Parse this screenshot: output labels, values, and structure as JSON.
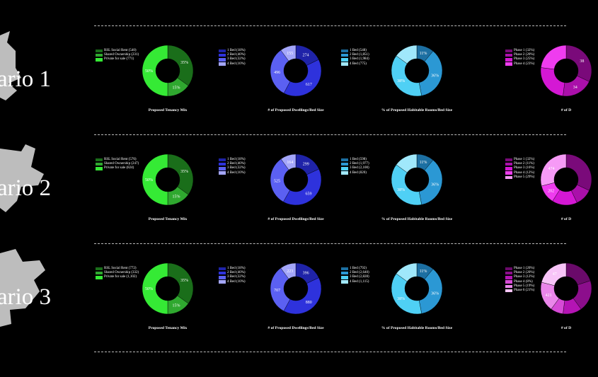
{
  "scenarios": [
    {
      "title": "ario 1",
      "charts": [
        {
          "caption": "Proposed Tenancy Mix",
          "legend": [
            "RSL Social Rent (540)",
            "Shared Ownership (231)",
            "Private for sale (771)"
          ],
          "colors": [
            "#1a6e1a",
            "#2fa82f",
            "#35ea35"
          ],
          "values": [
            35,
            15,
            50
          ],
          "labels": [
            "35%",
            "15%",
            "50%"
          ]
        },
        {
          "caption": "# of Proposed Dwellings/Bed Size",
          "legend": [
            "1 Bed (18%)",
            "2 Bed (40%)",
            "3 Bed (32%)",
            "4 Bed (10%)"
          ],
          "colors": [
            "#1f23a8",
            "#2e32dc",
            "#5b60f2",
            "#a4a6fa"
          ],
          "values": [
            274,
            617,
            496,
            155
          ],
          "labels": [
            "274",
            "617",
            "496",
            "155"
          ]
        },
        {
          "caption": "% of Proposed Habitable Rooms/Bed Size",
          "legend": [
            "1 Bed (548)",
            "2 Bed (1,851)",
            "3 Bed (1,984)",
            "4 Bed (775)"
          ],
          "colors": [
            "#1c6fa2",
            "#2b98d4",
            "#4fd0f5",
            "#a0e8fb"
          ],
          "values": [
            11,
            36,
            38,
            15
          ],
          "labels": [
            "11%",
            "36%",
            "38%",
            ""
          ]
        },
        {
          "caption": "# of D",
          "legend": [
            "Phase 1 (32%)",
            "Phase 2 (20%)",
            "Phase 3 (25%)",
            "Phase 4 (23%)"
          ],
          "colors": [
            "#7a0a7a",
            "#aa10aa",
            "#d418d4",
            "#ef3cef"
          ],
          "values": [
            32,
            20,
            25,
            23
          ],
          "labels": [
            "38",
            "34",
            "",
            ""
          ]
        }
      ]
    },
    {
      "title": "ario 2",
      "charts": [
        {
          "caption": "Proposed Tenancy Mix",
          "legend": [
            "RSL Social Rent (576)",
            "Shared Ownership (247)",
            "Private for sale (824)"
          ],
          "colors": [
            "#1a6e1a",
            "#2fa82f",
            "#35ea35"
          ],
          "values": [
            35,
            15,
            50
          ],
          "labels": [
            "35%",
            "15%",
            "50%"
          ]
        },
        {
          "caption": "# of Proposed Dwellings/Bed Size",
          "legend": [
            "1 Bed (18%)",
            "2 Bed (40%)",
            "3 Bed (32%)",
            "4 Bed (10%)"
          ],
          "colors": [
            "#1f23a8",
            "#2e32dc",
            "#5b60f2",
            "#a4a6fa"
          ],
          "values": [
            299,
            659,
            525,
            164
          ],
          "labels": [
            "299",
            "659",
            "525",
            "164"
          ]
        },
        {
          "caption": "% of Proposed Habitable Rooms/Bed Size",
          "legend": [
            "1 Bed (598)",
            "2 Bed (1,977)",
            "3 Bed (2,100)",
            "4 Bed (820)"
          ],
          "colors": [
            "#1c6fa2",
            "#2b98d4",
            "#4fd0f5",
            "#a0e8fb"
          ],
          "values": [
            11,
            36,
            38,
            15
          ],
          "labels": [
            "11%",
            "36%",
            "38%",
            ""
          ]
        },
        {
          "caption": "# of D",
          "legend": [
            "Phase 1 (32%)",
            "Phase 2 (11%)",
            "Phase 3 (16%)",
            "Phase 4 (12%)",
            "Phase 5 (29%)"
          ],
          "colors": [
            "#7a0a7a",
            "#aa10aa",
            "#d418d4",
            "#ef3cef",
            "#f69af6"
          ],
          "values": [
            32,
            11,
            16,
            12,
            29
          ],
          "labels": [
            "",
            "",
            "",
            "202",
            "474"
          ]
        }
      ]
    },
    {
      "title": "ario 3",
      "charts": [
        {
          "caption": "Proposed Tenancy Mix",
          "legend": [
            "RSL Social Rent (772)",
            "Shared Ownership (332)",
            "Private for sale (1,102)"
          ],
          "colors": [
            "#1a6e1a",
            "#2fa82f",
            "#35ea35"
          ],
          "values": [
            35,
            15,
            50
          ],
          "labels": [
            "35%",
            "15%",
            "50%"
          ]
        },
        {
          "caption": "# of Proposed Dwellings/Bed Size",
          "legend": [
            "1 Bed (18%)",
            "2 Bed (40%)",
            "3 Bed (32%)",
            "4 Bed (10%)"
          ],
          "colors": [
            "#1f23a8",
            "#2e32dc",
            "#5b60f2",
            "#a4a6fa"
          ],
          "values": [
            396,
            880,
            707,
            223
          ],
          "labels": [
            "396",
            "880",
            "707",
            "223"
          ]
        },
        {
          "caption": "% of Proposed Habitable Rooms/Bed Size",
          "legend": [
            "1 Bed (792)",
            "2 Bed (2,640)",
            "3 Bed (2,828)",
            "4 Bed (1,115)"
          ],
          "colors": [
            "#1c6fa2",
            "#2b98d4",
            "#4fd0f5",
            "#a0e8fb"
          ],
          "values": [
            11,
            36,
            38,
            15
          ],
          "labels": [
            "11%",
            "36%",
            "38%",
            ""
          ]
        },
        {
          "caption": "# of D",
          "legend": [
            "Phase 1 (20%)",
            "Phase 2 (20%)",
            "Phase 3 (12%)",
            "Phase 4 (8%)",
            "Phase 5 (19%)",
            "Phase 6 (21%)"
          ],
          "colors": [
            "#6a0a6a",
            "#8c0e8c",
            "#b414b4",
            "#d64ad6",
            "#ea86ea",
            "#f8c4f8"
          ],
          "values": [
            20,
            20,
            12,
            8,
            19,
            21
          ],
          "labels": [
            "",
            "",
            "",
            "",
            "421",
            "47"
          ]
        }
      ]
    }
  ],
  "chart_data": [
    {
      "type": "pie",
      "title": "Proposed Tenancy Mix",
      "scenario": "1",
      "categories": [
        "RSL Social Rent",
        "Shared Ownership",
        "Private for sale"
      ],
      "values": [
        540,
        231,
        771
      ],
      "percent": [
        35,
        15,
        50
      ]
    },
    {
      "type": "pie",
      "title": "# of Proposed Dwellings/Bed Size",
      "scenario": "1",
      "categories": [
        "1 Bed",
        "2 Bed",
        "3 Bed",
        "4 Bed"
      ],
      "values": [
        274,
        617,
        496,
        155
      ]
    },
    {
      "type": "pie",
      "title": "% of Proposed Habitable Rooms/Bed Size",
      "scenario": "1",
      "categories": [
        "1 Bed",
        "2 Bed",
        "3 Bed",
        "4 Bed"
      ],
      "values": [
        548,
        1851,
        1984,
        775
      ]
    },
    {
      "type": "pie",
      "title": "Proposed Tenancy Mix",
      "scenario": "2",
      "categories": [
        "RSL Social Rent",
        "Shared Ownership",
        "Private for sale"
      ],
      "values": [
        576,
        247,
        824
      ],
      "percent": [
        35,
        15,
        50
      ]
    },
    {
      "type": "pie",
      "title": "# of Proposed Dwellings/Bed Size",
      "scenario": "2",
      "categories": [
        "1 Bed",
        "2 Bed",
        "3 Bed",
        "4 Bed"
      ],
      "values": [
        299,
        659,
        525,
        164
      ]
    },
    {
      "type": "pie",
      "title": "% of Proposed Habitable Rooms/Bed Size",
      "scenario": "2",
      "categories": [
        "1 Bed",
        "2 Bed",
        "3 Bed",
        "4 Bed"
      ],
      "values": [
        598,
        1977,
        2100,
        820
      ]
    },
    {
      "type": "pie",
      "title": "Proposed Tenancy Mix",
      "scenario": "3",
      "categories": [
        "RSL Social Rent",
        "Shared Ownership",
        "Private for sale"
      ],
      "values": [
        772,
        332,
        1102
      ],
      "percent": [
        35,
        15,
        50
      ]
    },
    {
      "type": "pie",
      "title": "# of Proposed Dwellings/Bed Size",
      "scenario": "3",
      "categories": [
        "1 Bed",
        "2 Bed",
        "3 Bed",
        "4 Bed"
      ],
      "values": [
        396,
        880,
        707,
        223
      ]
    },
    {
      "type": "pie",
      "title": "% of Proposed Habitable Rooms/Bed Size",
      "scenario": "3",
      "categories": [
        "1 Bed",
        "2 Bed",
        "3 Bed",
        "4 Bed"
      ],
      "values": [
        792,
        2640,
        2828,
        1115
      ]
    }
  ]
}
